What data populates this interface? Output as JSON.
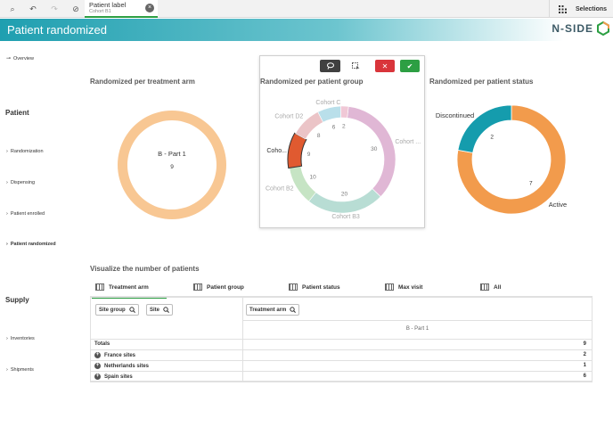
{
  "toolbar": {
    "buttons": [
      {
        "name": "smart-search-icon",
        "glyph": "⌕"
      },
      {
        "name": "step-back-icon",
        "glyph": "↶"
      },
      {
        "name": "step-forward-icon",
        "glyph": "↷"
      },
      {
        "name": "clear-selections-icon",
        "glyph": "⊘"
      }
    ],
    "chip_title": "Patient label",
    "chip_value": "Cohort B1",
    "chip_close": "×",
    "selections_label": "Selections"
  },
  "header": {
    "title": "Patient randomized",
    "logo_text": "N-SIDE"
  },
  "sidebar": {
    "overview": "Overview",
    "section_patient": "Patient",
    "patient_items": [
      "Randomization",
      "Dispensing",
      "Patient enrolled",
      "Patient randomized"
    ],
    "section_supply": "Supply",
    "supply_items": [
      "Inventories",
      "Shipments"
    ],
    "chevron": "›"
  },
  "charts_titles": {
    "treatment_arm": "Randomized per treatment arm",
    "patient_group": "Randomized per patient group",
    "patient_status": "Randomized per patient status"
  },
  "colors": {
    "accent_green": "#2d9f43",
    "header_teal": "#1f9fb0",
    "treatment_orange": "#f8c793",
    "status_orange": "#f29b4c",
    "status_teal": "#159cad",
    "selected_segment": "#e05a30"
  },
  "chart_data": [
    {
      "type": "pie",
      "title": "Randomized per treatment arm",
      "slices": [
        {
          "label": "B - Part 1",
          "value": 9,
          "color": "#f8c793"
        }
      ]
    },
    {
      "type": "pie",
      "title": "Randomized per patient group",
      "slices": [
        {
          "label": "Cohort ...",
          "value": 30,
          "color": "#e0b7d5"
        },
        {
          "label": "Cohort B3",
          "value": 20,
          "color": "#b8ddd4"
        },
        {
          "label": "Cohort B2",
          "value": 10,
          "color": "#c6e4c4"
        },
        {
          "label": "Coho...",
          "value": 9,
          "color": "#e05a30"
        },
        {
          "label": "Cohort D2",
          "value": 8,
          "color": "#ebc4c7"
        },
        {
          "label": "Cohort C",
          "value": 6,
          "color": "#b9dfea"
        },
        {
          "label": "",
          "value": 2,
          "color": "#f0c8d6"
        }
      ]
    },
    {
      "type": "pie",
      "title": "Randomized per patient status",
      "slices": [
        {
          "label": "Active",
          "value": 7,
          "color": "#f29b4c"
        },
        {
          "label": "Discontinued",
          "value": 2,
          "color": "#159cad"
        }
      ]
    }
  ],
  "table_section": {
    "title": "Visualize the number of patients",
    "tabs": [
      "Treatment arm",
      "Patient group",
      "Patient status",
      "Max visit",
      "All"
    ],
    "filters": [
      "Site group",
      "Site"
    ],
    "column_filter": "Treatment arm",
    "column_header": "B - Part 1",
    "rows": [
      {
        "label": "Totals",
        "value": "9",
        "expand": false
      },
      {
        "label": "France sites",
        "value": "2",
        "expand": true
      },
      {
        "label": "Netherlands sites",
        "value": "1",
        "expand": true
      },
      {
        "label": "Spain sites",
        "value": "6",
        "expand": true
      }
    ],
    "plus_glyph": "+"
  },
  "popup": {
    "lasso_icon": "lasso-icon",
    "select_icon": "select-options-icon",
    "cancel_glyph": "✕",
    "confirm_glyph": "✔"
  }
}
